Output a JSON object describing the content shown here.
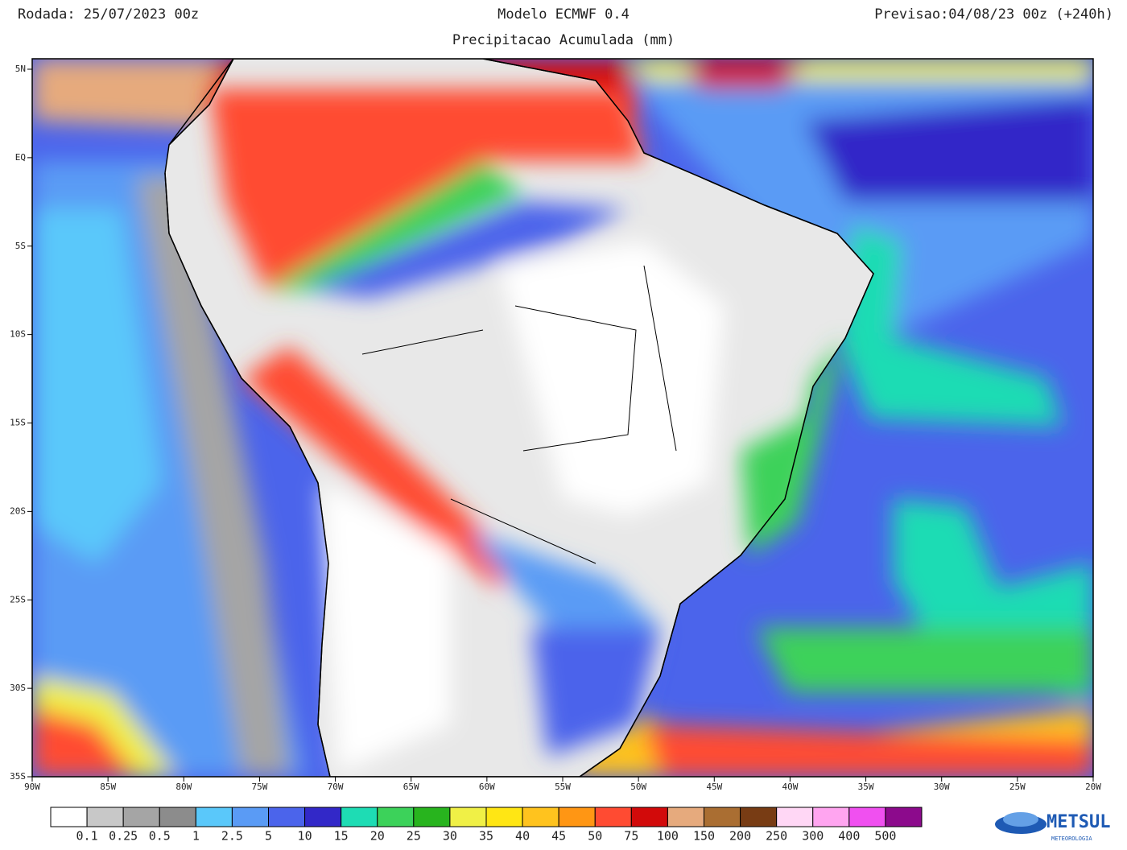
{
  "header": {
    "run": "Rodada: 25/07/2023 00z",
    "model": "Modelo ECMWF 0.4",
    "forecast": "Previsao:04/08/23 00z (+240h)",
    "subtitle": "Precipitacao Acumulada (mm)"
  },
  "axes": {
    "lat_labels": [
      "5N",
      "EQ",
      "5S",
      "10S",
      "15S",
      "20S",
      "25S",
      "30S",
      "35S"
    ],
    "lon_labels": [
      "90W",
      "85W",
      "80W",
      "75W",
      "70W",
      "65W",
      "60W",
      "55W",
      "50W",
      "45W",
      "40W",
      "35W",
      "30W",
      "25W",
      "20W"
    ]
  },
  "colorbar": {
    "colors": [
      "#ffffff",
      "#c8c8c8",
      "#a5a5a5",
      "#8c8c8c",
      "#5ac8fa",
      "#5a9bf5",
      "#4b64eb",
      "#3228c8",
      "#1edcb4",
      "#3cd25a",
      "#28b41e",
      "#f0f046",
      "#ffe614",
      "#ffc31e",
      "#ff9614",
      "#ff4b32",
      "#d20a0a",
      "#e6aa7d",
      "#aa6e32",
      "#783c14",
      "#ffd7f5",
      "#ffa5f0",
      "#f050f0",
      "#8c0a8c"
    ],
    "labels": [
      "0.1",
      "0.25",
      "0.5",
      "1",
      "2.5",
      "5",
      "10",
      "15",
      "20",
      "25",
      "30",
      "35",
      "40",
      "45",
      "50",
      "75",
      "100",
      "150",
      "200",
      "250",
      "300",
      "400",
      "500"
    ]
  },
  "logo": {
    "name": "METSUL",
    "tagline": "METEOROLOGIA"
  }
}
